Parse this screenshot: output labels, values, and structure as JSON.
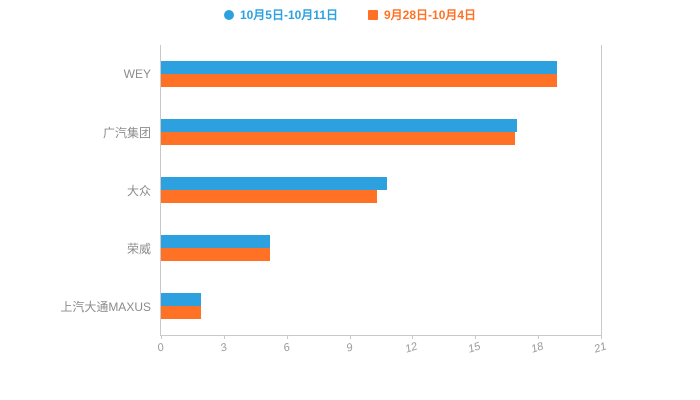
{
  "chart_data": {
    "type": "bar",
    "orientation": "horizontal",
    "title": "",
    "xlabel": "",
    "ylabel": "",
    "xlim": [
      0,
      21
    ],
    "x_ticks": [
      "0",
      "3",
      "6",
      "9",
      "12",
      "15",
      "18",
      "21"
    ],
    "grid": false,
    "legend_position": "top",
    "categories": [
      "WEY",
      "广汽集团",
      "大众",
      "荣威",
      "上汽大通MAXUS"
    ],
    "series": [
      {
        "name": "10月5日-10月11日",
        "color": "#2da1e0",
        "marker": "circle",
        "values": [
          18.9,
          17.0,
          10.8,
          5.2,
          1.9
        ]
      },
      {
        "name": "9月28日-10月4日",
        "color": "#ff7124",
        "marker": "square",
        "values": [
          18.9,
          16.9,
          10.3,
          5.2,
          1.9
        ]
      }
    ],
    "colors": {
      "axis": "#c9c9c9",
      "label_text": "#8c8c8c",
      "tick_text": "#9a9a9a"
    }
  }
}
